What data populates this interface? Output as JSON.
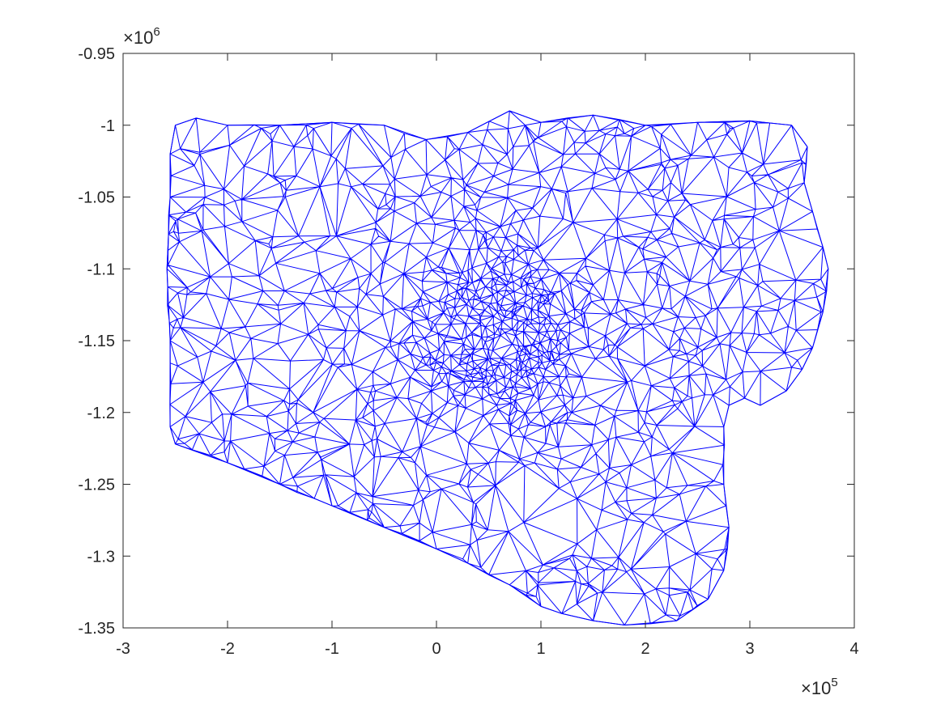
{
  "chart_data": {
    "type": "mesh",
    "title": "",
    "xlabel": "",
    "ylabel": "",
    "xlim": [
      -3,
      4
    ],
    "ylim": [
      -1.35,
      -0.95
    ],
    "x_multiplier": {
      "base": "×10",
      "exponent": "5"
    },
    "y_multiplier": {
      "base": "×10",
      "exponent": "6"
    },
    "x_ticks": [
      -3,
      -2,
      -1,
      0,
      1,
      2,
      3,
      4
    ],
    "x_tick_labels": [
      "-3",
      "-2",
      "-1",
      "0",
      "1",
      "2",
      "3",
      "4"
    ],
    "y_ticks": [
      -0.95,
      -1,
      -1.05,
      -1.1,
      -1.15,
      -1.2,
      -1.25,
      -1.3,
      -1.35
    ],
    "y_tick_labels": [
      "-0.95",
      "-1",
      "-1.05",
      "-1.1",
      "-1.15",
      "-1.2",
      "-1.25",
      "-1.3",
      "-1.35"
    ],
    "grid": false,
    "legend": "none",
    "line_color": "#0000ff",
    "boundary": [
      [
        -2.55,
        -1.02
      ],
      [
        -2.5,
        -1.0
      ],
      [
        -2.3,
        -0.995
      ],
      [
        -2.0,
        -1.0
      ],
      [
        -1.5,
        -1.0
      ],
      [
        -1.0,
        -0.998
      ],
      [
        -0.5,
        -1.0
      ],
      [
        -0.1,
        -1.01
      ],
      [
        0.3,
        -1.005
      ],
      [
        0.7,
        -0.99
      ],
      [
        1.0,
        -0.998
      ],
      [
        1.5,
        -0.993
      ],
      [
        2.0,
        -1.0
      ],
      [
        2.5,
        -0.998
      ],
      [
        3.0,
        -0.997
      ],
      [
        3.4,
        -1.0
      ],
      [
        3.55,
        -1.015
      ],
      [
        3.52,
        -1.04
      ],
      [
        3.6,
        -1.06
      ],
      [
        3.7,
        -1.085
      ],
      [
        3.75,
        -1.1
      ],
      [
        3.7,
        -1.13
      ],
      [
        3.6,
        -1.155
      ],
      [
        3.5,
        -1.17
      ],
      [
        3.35,
        -1.185
      ],
      [
        3.1,
        -1.195
      ],
      [
        2.95,
        -1.19
      ],
      [
        2.8,
        -1.195
      ],
      [
        2.75,
        -1.21
      ],
      [
        2.75,
        -1.25
      ],
      [
        2.8,
        -1.28
      ],
      [
        2.75,
        -1.31
      ],
      [
        2.6,
        -1.33
      ],
      [
        2.3,
        -1.345
      ],
      [
        1.8,
        -1.348
      ],
      [
        1.5,
        -1.345
      ],
      [
        1.2,
        -1.34
      ],
      [
        1.0,
        -1.335
      ],
      [
        0.7,
        -1.32
      ],
      [
        0.3,
        -1.305
      ],
      [
        0.0,
        -1.295
      ],
      [
        -0.5,
        -1.28
      ],
      [
        -1.0,
        -1.265
      ],
      [
        -1.5,
        -1.25
      ],
      [
        -2.0,
        -1.235
      ],
      [
        -2.5,
        -1.222
      ],
      [
        -2.55,
        -1.21
      ],
      [
        -2.55,
        -1.15
      ],
      [
        -2.58,
        -1.1
      ],
      [
        -2.55,
        -1.05
      ]
    ],
    "refinement_center": [
      0.6,
      -1.145
    ]
  }
}
